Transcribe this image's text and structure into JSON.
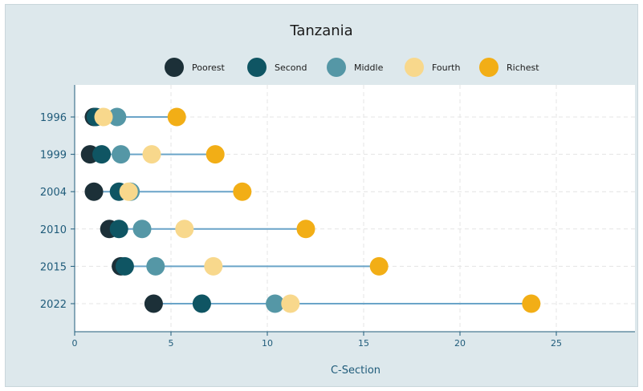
{
  "chart_data": {
    "type": "scatter",
    "title": "Tanzania",
    "xlabel": "C-Section",
    "ylabel": "",
    "xlim": [
      0,
      29
    ],
    "xticks": [
      0,
      5,
      10,
      15,
      20,
      25
    ],
    "categories": [
      "1996",
      "1999",
      "2004",
      "2010",
      "2015",
      "2022"
    ],
    "legend_position": "top",
    "grid": true,
    "series": [
      {
        "name": "Poorest",
        "color": "#1c3038",
        "values": [
          1.0,
          0.8,
          1.0,
          1.8,
          2.4,
          4.1
        ]
      },
      {
        "name": "Second",
        "color": "#0f5563",
        "values": [
          1.1,
          1.4,
          2.3,
          2.3,
          2.6,
          6.6
        ]
      },
      {
        "name": "Middle",
        "color": "#5597a6",
        "values": [
          2.2,
          2.4,
          2.9,
          3.5,
          4.2,
          10.4
        ]
      },
      {
        "name": "Fourth",
        "color": "#f8d88c",
        "values": [
          1.5,
          4.0,
          2.8,
          5.7,
          7.2,
          11.2
        ]
      },
      {
        "name": "Richest",
        "color": "#f2ae16",
        "values": [
          5.3,
          7.3,
          8.7,
          12.0,
          15.8,
          23.7
        ]
      }
    ]
  }
}
